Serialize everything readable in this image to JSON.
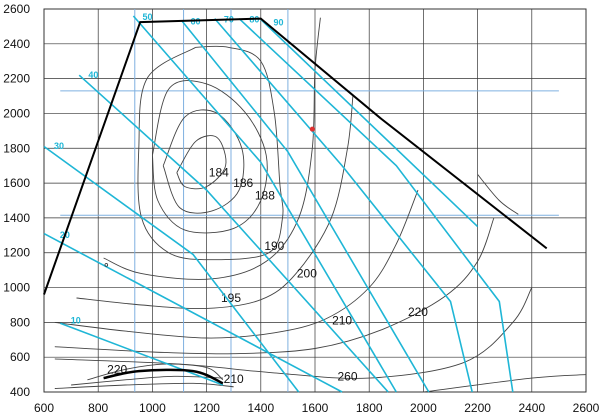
{
  "chart_data": {
    "type": "line",
    "title": "",
    "xlabel": "",
    "ylabel": "",
    "xlim": [
      600,
      2600
    ],
    "ylim": [
      400,
      2600
    ],
    "grid": true,
    "x_ticks": [
      600,
      800,
      1000,
      1200,
      1400,
      1600,
      1800,
      2000,
      2200,
      2400,
      2600
    ],
    "y_ticks": [
      400,
      600,
      800,
      1000,
      1200,
      1400,
      1600,
      1800,
      2000,
      2200,
      2400,
      2600
    ],
    "colors": {
      "grid": "#333333",
      "boundary": "#000000",
      "contour": "#444444",
      "power": "#1fb6d6",
      "guide": "#7fb0e0",
      "point": "#e03030"
    },
    "boundary": [
      [
        600,
        960
      ],
      [
        955,
        2525
      ],
      [
        1400,
        2545
      ],
      [
        1840,
        1975
      ],
      [
        2455,
        1225
      ]
    ],
    "low_load_boundary": [
      [
        820,
        480
      ],
      [
        950,
        520
      ],
      [
        1150,
        520
      ],
      [
        1260,
        450
      ]
    ],
    "guide_lines": [
      {
        "orientation": "v",
        "value": 935
      },
      {
        "orientation": "v",
        "value": 1115
      },
      {
        "orientation": "v",
        "value": 1290
      },
      {
        "orientation": "v",
        "value": 1500
      },
      {
        "orientation": "h",
        "value": 2130
      },
      {
        "orientation": "h",
        "value": 1415
      }
    ],
    "power_lines": [
      {
        "label": "10",
        "points": [
          [
            660,
            795
          ],
          [
            1260,
            440
          ]
        ]
      },
      {
        "label": "20",
        "points": [
          [
            600,
            1310
          ],
          [
            1700,
            400
          ]
        ]
      },
      {
        "label": "30",
        "points": [
          [
            600,
            1810
          ],
          [
            1150,
            1190
          ],
          [
            1540,
            400
          ]
        ]
      },
      {
        "label": "40",
        "points": [
          [
            730,
            2220
          ],
          [
            1200,
            1560
          ],
          [
            1870,
            400
          ]
        ]
      },
      {
        "label": "50",
        "points": [
          [
            930,
            2560
          ],
          [
            1400,
            1720
          ],
          [
            1900,
            400
          ]
        ]
      },
      {
        "label": "60",
        "points": [
          [
            1110,
            2530
          ],
          [
            1500,
            1780
          ],
          [
            2020,
            400
          ]
        ]
      },
      {
        "label": "70",
        "points": [
          [
            1230,
            2545
          ],
          [
            1700,
            1700
          ],
          [
            2100,
            920
          ],
          [
            2180,
            400
          ]
        ]
      },
      {
        "label": "80",
        "points": [
          [
            1320,
            2545
          ],
          [
            1900,
            1700
          ],
          [
            2280,
            920
          ],
          [
            2330,
            400
          ]
        ]
      },
      {
        "label": "90",
        "points": [
          [
            1400,
            2540
          ],
          [
            2200,
            1350
          ]
        ]
      }
    ],
    "contours": [
      {
        "label": "184",
        "label_at": [
          1245,
          1660
        ],
        "points": [
          [
            1090,
            1660
          ],
          [
            1160,
            1840
          ],
          [
            1240,
            1860
          ],
          [
            1270,
            1700
          ],
          [
            1200,
            1580
          ],
          [
            1120,
            1580
          ],
          [
            1090,
            1660
          ]
        ]
      },
      {
        "label": "186",
        "label_at": [
          1335,
          1600
        ],
        "points": [
          [
            1040,
            1700
          ],
          [
            1120,
            1980
          ],
          [
            1240,
            2000
          ],
          [
            1330,
            1800
          ],
          [
            1320,
            1560
          ],
          [
            1220,
            1440
          ],
          [
            1100,
            1460
          ],
          [
            1040,
            1700
          ]
        ]
      },
      {
        "label": "188",
        "label_at": [
          1415,
          1530
        ],
        "points": [
          [
            1000,
            1760
          ],
          [
            1060,
            2140
          ],
          [
            1200,
            2170
          ],
          [
            1340,
            2010
          ],
          [
            1420,
            1760
          ],
          [
            1400,
            1500
          ],
          [
            1300,
            1340
          ],
          [
            1120,
            1330
          ],
          [
            1020,
            1500
          ],
          [
            1000,
            1760
          ]
        ]
      },
      {
        "label": "190",
        "label_at": [
          1450,
          1240
        ],
        "points": [
          [
            1160,
            2380
          ],
          [
            1280,
            2380
          ],
          [
            1400,
            2300
          ],
          [
            1450,
            2000
          ],
          [
            1470,
            1600
          ],
          [
            1480,
            1400
          ],
          [
            1430,
            1200
          ],
          [
            1220,
            1160
          ],
          [
            1060,
            1200
          ],
          [
            960,
            1400
          ],
          [
            950,
            1800
          ],
          [
            980,
            2200
          ],
          [
            1160,
            2380
          ]
        ]
      },
      {
        "label": "195",
        "label_at": [
          1290,
          940
        ],
        "points": [
          [
            820,
            1170
          ],
          [
            960,
            1080
          ],
          [
            1220,
            1050
          ],
          [
            1420,
            1150
          ],
          [
            1540,
            1400
          ],
          [
            1590,
            1800
          ],
          [
            1600,
            2250
          ],
          [
            1620,
            2550
          ]
        ]
      },
      {
        "label": "200",
        "label_at": [
          1570,
          1080
        ],
        "points": [
          [
            720,
            940
          ],
          [
            960,
            900
          ],
          [
            1200,
            880
          ],
          [
            1400,
            930
          ],
          [
            1530,
            1080
          ],
          [
            1660,
            1400
          ],
          [
            1720,
            1800
          ],
          [
            1740,
            2100
          ]
        ]
      },
      {
        "label": "210",
        "label_at": [
          1700,
          810
        ],
        "points": [
          [
            640,
            800
          ],
          [
            900,
            750
          ],
          [
            1200,
            710
          ],
          [
            1450,
            740
          ],
          [
            1640,
            820
          ],
          [
            1800,
            1000
          ],
          [
            1900,
            1250
          ],
          [
            1980,
            1560
          ]
        ]
      },
      {
        "label": "220",
        "label_at": [
          1980,
          860
        ],
        "points": [
          [
            640,
            660
          ],
          [
            1000,
            630
          ],
          [
            1300,
            620
          ],
          [
            1600,
            650
          ],
          [
            1850,
            760
          ],
          [
            2080,
            950
          ],
          [
            2200,
            1150
          ],
          [
            2260,
            1400
          ]
        ]
      },
      {
        "label": "260",
        "label_at": [
          1720,
          490
        ],
        "points": [
          [
            640,
            590
          ],
          [
            1100,
            560
          ],
          [
            1450,
            510
          ],
          [
            1800,
            480
          ],
          [
            2150,
            570
          ],
          [
            2330,
            800
          ],
          [
            2400,
            1000
          ]
        ]
      },
      {
        "label": "",
        "label_at": null,
        "points": [
          [
            2000,
            400
          ],
          [
            2400,
            480
          ],
          [
            2600,
            500
          ]
        ]
      },
      {
        "label": "",
        "label_at": null,
        "points": [
          [
            2200,
            1650
          ],
          [
            2280,
            1500
          ],
          [
            2350,
            1420
          ]
        ]
      }
    ],
    "low_load_contours": [
      {
        "label": "220",
        "label_at": [
          870,
          530
        ],
        "points": [
          [
            760,
            470
          ],
          [
            900,
            530
          ],
          [
            1050,
            560
          ],
          [
            1200,
            540
          ],
          [
            1260,
            470
          ]
        ]
      },
      {
        "label": "210",
        "label_at": [
          1300,
          475
        ],
        "points": [
          [
            700,
            440
          ],
          [
            900,
            470
          ],
          [
            1080,
            490
          ],
          [
            1260,
            480
          ]
        ]
      },
      {
        "label": "",
        "label_at": null,
        "points": [
          [
            640,
            420
          ],
          [
            900,
            440
          ],
          [
            1150,
            450
          ],
          [
            1300,
            430
          ]
        ]
      }
    ],
    "points": [
      [
        1590,
        1910
      ]
    ],
    "markers": [
      [
        830,
        1130
      ]
    ]
  }
}
